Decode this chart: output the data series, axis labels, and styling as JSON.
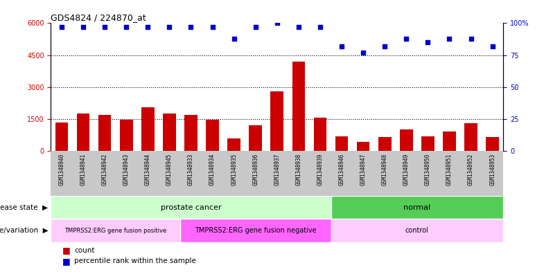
{
  "title": "GDS4824 / 224870_at",
  "samples": [
    "GSM1348940",
    "GSM1348941",
    "GSM1348942",
    "GSM1348943",
    "GSM1348944",
    "GSM1348945",
    "GSM1348933",
    "GSM1348934",
    "GSM1348935",
    "GSM1348936",
    "GSM1348937",
    "GSM1348938",
    "GSM1348939",
    "GSM1348946",
    "GSM1348947",
    "GSM1348948",
    "GSM1348949",
    "GSM1348950",
    "GSM1348951",
    "GSM1348952",
    "GSM1348953"
  ],
  "counts": [
    1350,
    1750,
    1700,
    1480,
    2050,
    1750,
    1700,
    1480,
    600,
    1200,
    2800,
    4200,
    1550,
    680,
    420,
    650,
    1000,
    700,
    900,
    1300,
    650
  ],
  "percentile_ranks": [
    97,
    97,
    97,
    97,
    97,
    97,
    97,
    97,
    88,
    97,
    100,
    97,
    97,
    82,
    77,
    82,
    88,
    85,
    88,
    88,
    82
  ],
  "disease_state_groups": [
    {
      "label": "prostate cancer",
      "start": 0,
      "end": 12,
      "color": "#ccffcc"
    },
    {
      "label": "normal",
      "start": 13,
      "end": 20,
      "color": "#55cc55"
    }
  ],
  "genotype_groups": [
    {
      "label": "TMPRSS2:ERG gene fusion positive",
      "start": 0,
      "end": 5,
      "color": "#ffccff"
    },
    {
      "label": "TMPRSS2:ERG gene fusion negative",
      "start": 6,
      "end": 12,
      "color": "#ff66ff"
    },
    {
      "label": "control",
      "start": 13,
      "end": 20,
      "color": "#ffccff"
    }
  ],
  "bar_color": "#cc0000",
  "dot_color": "#0000cc",
  "ylim_left": [
    0,
    6000
  ],
  "ylim_right": [
    0,
    100
  ],
  "yticks_left": [
    0,
    1500,
    3000,
    4500,
    6000
  ],
  "yticks_right": [
    0,
    25,
    50,
    75,
    100
  ],
  "grid_lines": [
    1500,
    3000,
    4500
  ],
  "bg_color": "#ffffff",
  "xtick_bg_color": "#c8c8c8"
}
